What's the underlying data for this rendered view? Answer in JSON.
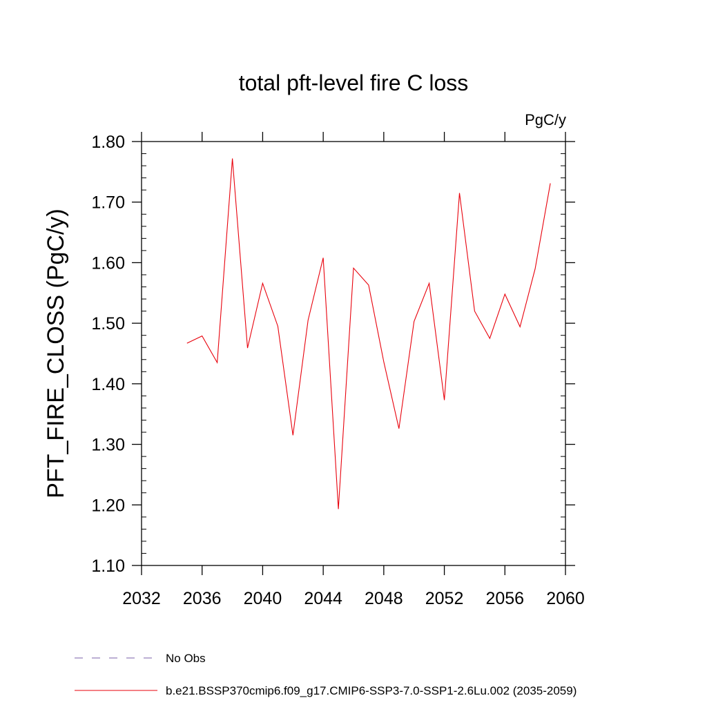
{
  "chart_data": {
    "type": "line",
    "title": "total pft-level fire C loss",
    "units_label": "PgC/y",
    "ylabel": "PFT_FIRE_CLOSS  (PgC/y)",
    "xlabel": "",
    "xlim": [
      2032,
      2060
    ],
    "ylim": [
      1.1,
      1.8
    ],
    "x_ticks": [
      2032,
      2036,
      2040,
      2044,
      2048,
      2052,
      2056,
      2060
    ],
    "x_tick_labels": [
      "2032",
      "2036",
      "2040",
      "2044",
      "2048",
      "2052",
      "2056",
      "2060"
    ],
    "y_ticks": [
      1.1,
      1.2,
      1.3,
      1.4,
      1.5,
      1.6,
      1.7,
      1.8
    ],
    "y_tick_labels": [
      "1.10",
      "1.20",
      "1.30",
      "1.40",
      "1.50",
      "1.60",
      "1.70",
      "1.80"
    ],
    "series": [
      {
        "name": "b.e21.BSSP370cmip6.f09_g17.CMIP6-SSP3-7.0-SSP1-2.6Lu.002 (2035-2059)",
        "color": "#e8000b",
        "x": [
          2035,
          2036,
          2037,
          2038,
          2039,
          2040,
          2041,
          2042,
          2043,
          2044,
          2045,
          2046,
          2047,
          2048,
          2049,
          2050,
          2051,
          2052,
          2053,
          2054,
          2055,
          2056,
          2057,
          2058,
          2059
        ],
        "y": [
          1.467,
          1.479,
          1.435,
          1.772,
          1.459,
          1.566,
          1.495,
          1.315,
          1.505,
          1.608,
          1.193,
          1.591,
          1.563,
          1.436,
          1.326,
          1.503,
          1.566,
          1.373,
          1.715,
          1.52,
          1.475,
          1.548,
          1.494,
          1.59,
          1.731
        ]
      }
    ],
    "legend": [
      {
        "label": "No Obs",
        "color": "#7a5fa8",
        "style": "dashed"
      },
      {
        "label": "b.e21.BSSP370cmip6.f09_g17.CMIP6-SSP3-7.0-SSP1-2.6Lu.002 (2035-2059)",
        "color": "#e8000b",
        "style": "solid"
      }
    ],
    "grid": false,
    "legend_position": "bottom"
  }
}
